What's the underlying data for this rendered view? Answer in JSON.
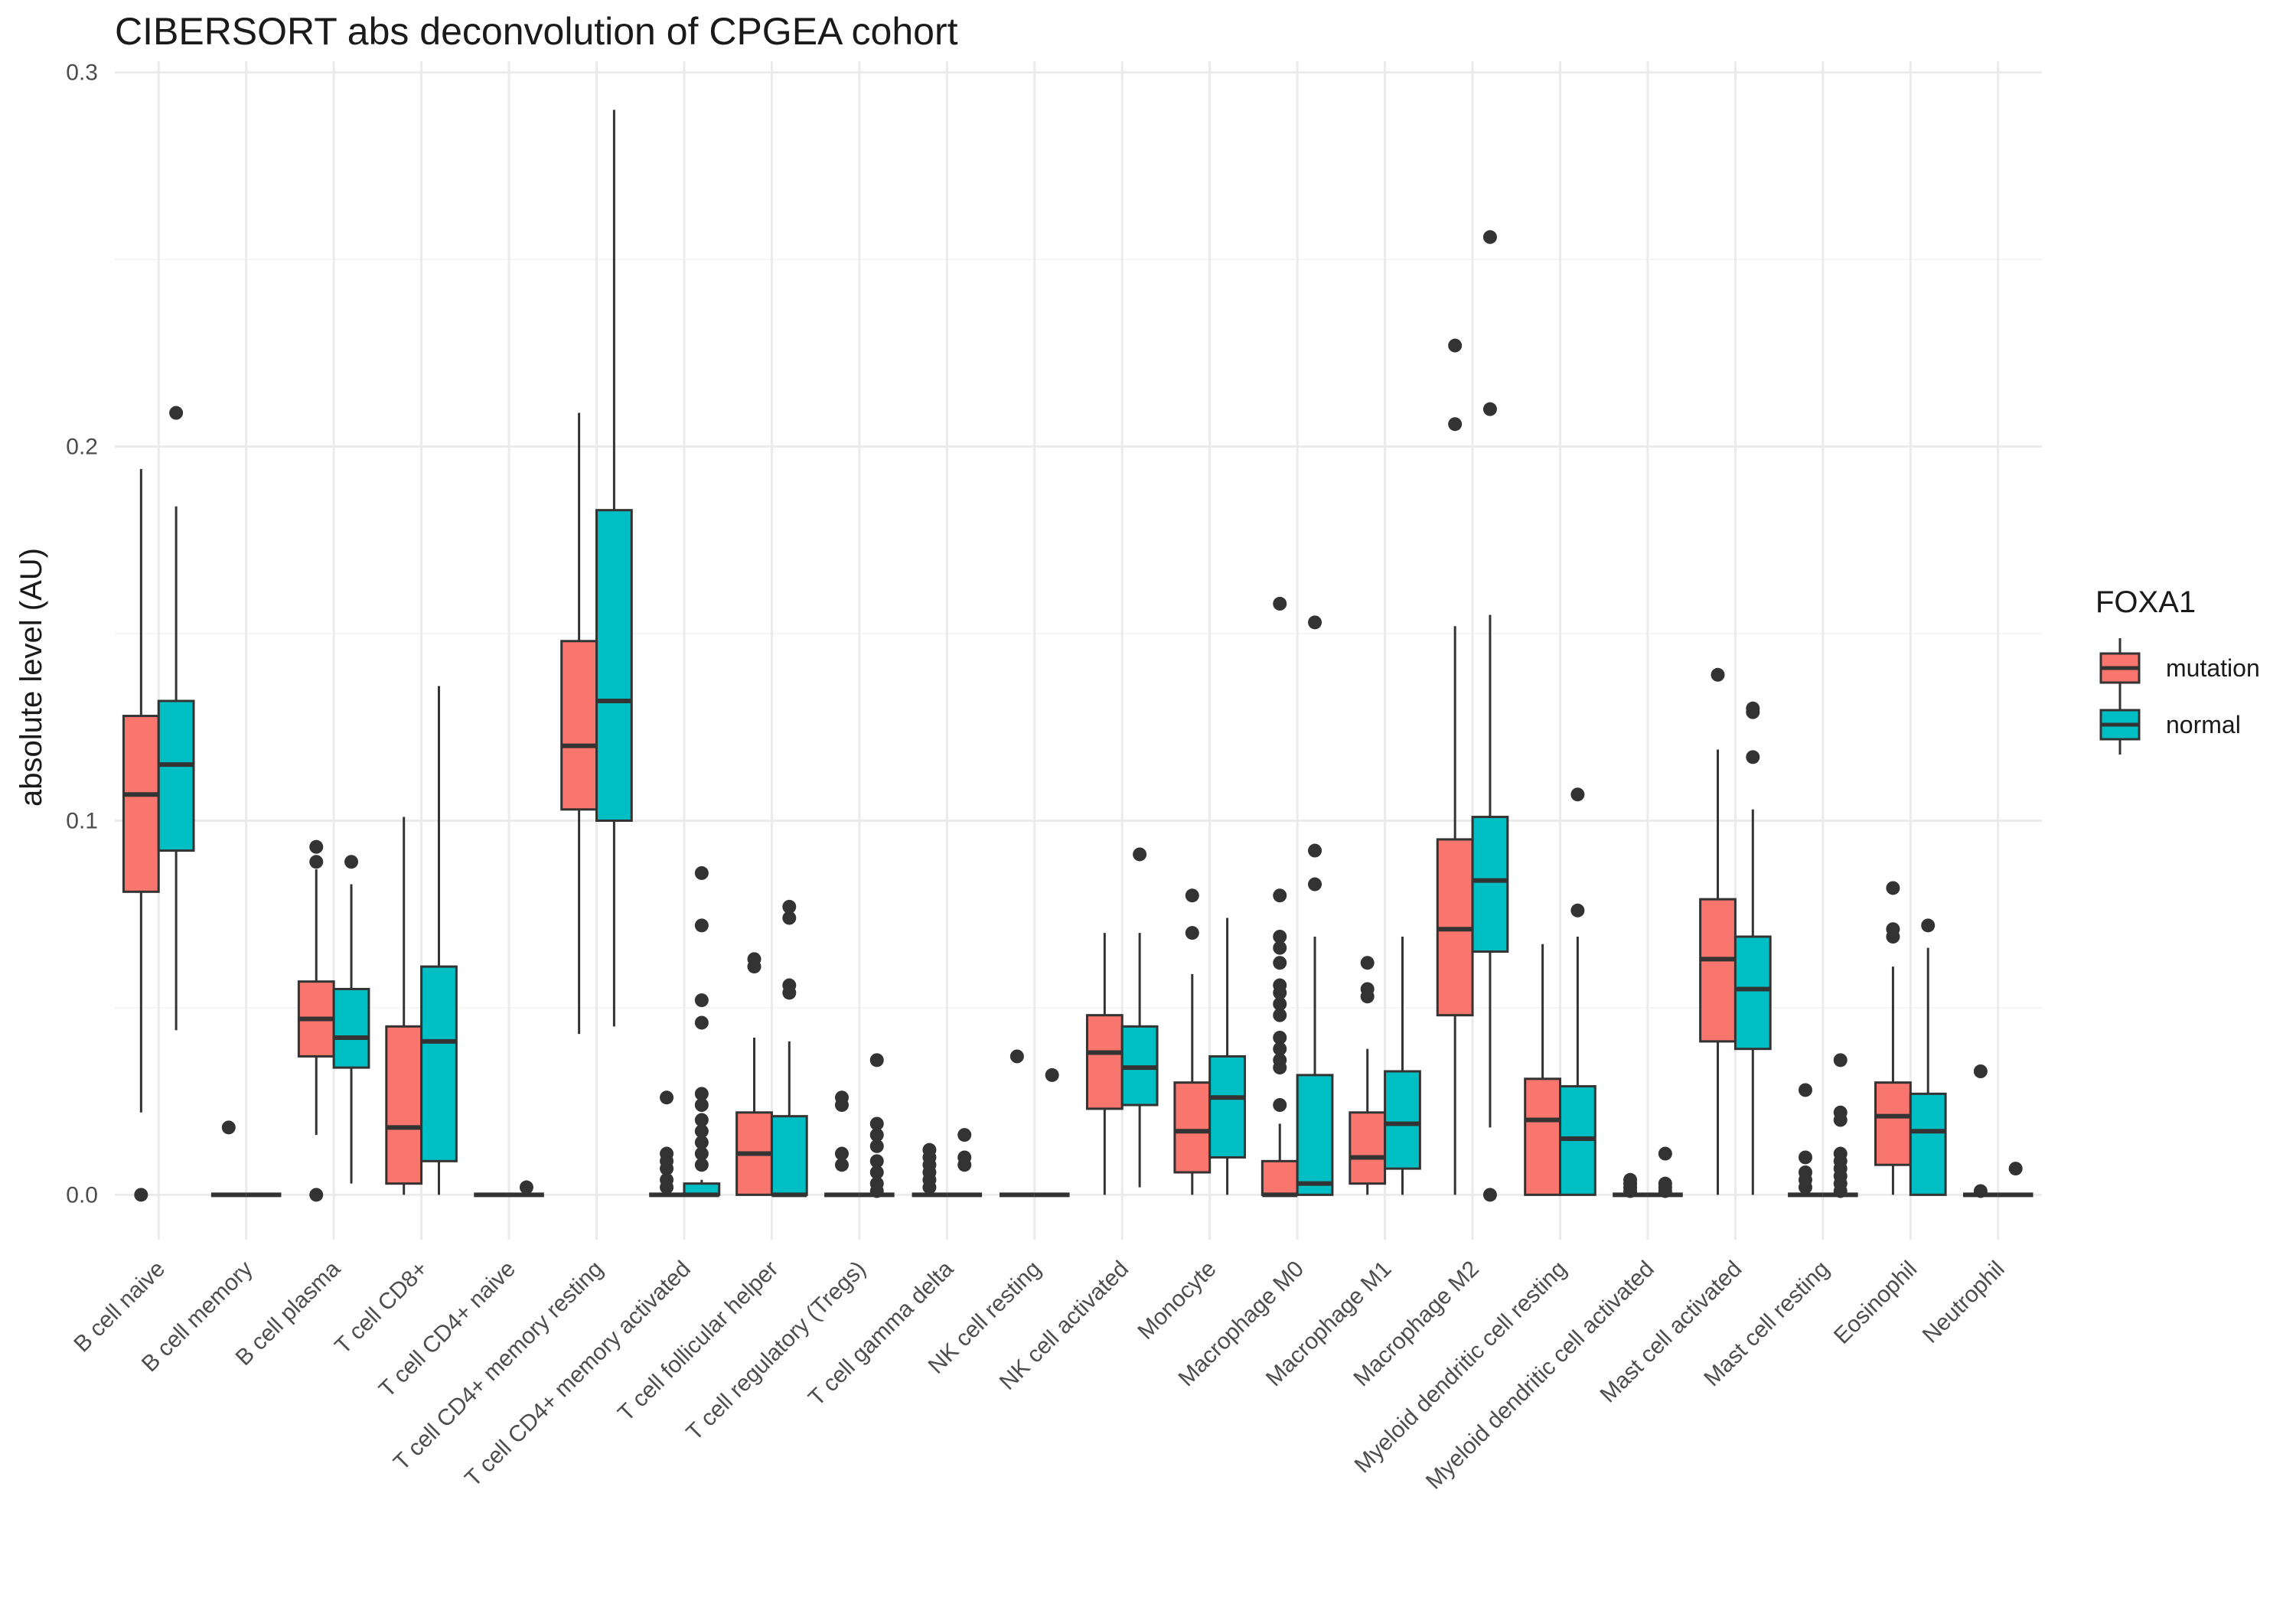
{
  "chart_data": {
    "type": "boxplot",
    "title": "CIBERSORT abs deconvolution of CPGEA cohort",
    "ylabel": "absolute level (AU)",
    "ylim": [
      -0.012,
      0.303
    ],
    "yticks": [
      0.0,
      0.1,
      0.2,
      0.3
    ],
    "ytick_labels": [
      "0.0",
      "0.1",
      "0.2",
      "0.3"
    ],
    "grid": true,
    "legend": {
      "title": "FOXA1",
      "position": "right",
      "entries": [
        {
          "name": "mutation",
          "color": "#F8766D"
        },
        {
          "name": "normal",
          "color": "#00BFC4"
        }
      ]
    },
    "categories": [
      "B cell naive",
      "B cell memory",
      "B cell plasma",
      "T cell CD8+",
      "T cell CD4+ naive",
      "T cell CD4+ memory resting",
      "T cell CD4+ memory activated",
      "T cell follicular helper",
      "T cell regulatory (Tregs)",
      "T cell gamma delta",
      "NK cell resting",
      "NK cell activated",
      "Monocyte",
      "Macrophage M0",
      "Macrophage M1",
      "Macrophage M2",
      "Myeloid dendritic cell resting",
      "Myeloid dendritic cell activated",
      "Mast cell activated",
      "Mast cell resting",
      "Eosinophil",
      "Neutrophil"
    ],
    "series": [
      {
        "name": "mutation",
        "color": "#F8766D",
        "boxes": [
          {
            "q1": 0.081,
            "median": 0.107,
            "q3": 0.128,
            "lower": 0.022,
            "upper": 0.194,
            "outliers": [
              0.0
            ]
          },
          {
            "q1": 0.0,
            "median": 0.0,
            "q3": 0.0,
            "lower": 0.0,
            "upper": 0.0,
            "outliers": [
              0.018
            ]
          },
          {
            "q1": 0.037,
            "median": 0.047,
            "q3": 0.057,
            "lower": 0.016,
            "upper": 0.087,
            "outliers": [
              0.0,
              0.089,
              0.093
            ]
          },
          {
            "q1": 0.003,
            "median": 0.018,
            "q3": 0.045,
            "lower": 0.0,
            "upper": 0.101,
            "outliers": []
          },
          {
            "q1": 0.0,
            "median": 0.0,
            "q3": 0.0,
            "lower": 0.0,
            "upper": 0.0,
            "outliers": []
          },
          {
            "q1": 0.103,
            "median": 0.12,
            "q3": 0.148,
            "lower": 0.043,
            "upper": 0.209,
            "outliers": []
          },
          {
            "q1": 0.0,
            "median": 0.0,
            "q3": 0.0,
            "lower": 0.0,
            "upper": 0.0,
            "outliers": [
              0.002,
              0.004,
              0.007,
              0.009,
              0.011,
              0.026
            ]
          },
          {
            "q1": 0.0,
            "median": 0.011,
            "q3": 0.022,
            "lower": 0.0,
            "upper": 0.042,
            "outliers": [
              0.061,
              0.063
            ]
          },
          {
            "q1": 0.0,
            "median": 0.0,
            "q3": 0.0,
            "lower": 0.0,
            "upper": 0.0,
            "outliers": [
              0.008,
              0.011,
              0.024,
              0.026
            ]
          },
          {
            "q1": 0.0,
            "median": 0.0,
            "q3": 0.0,
            "lower": 0.0,
            "upper": 0.0,
            "outliers": [
              0.002,
              0.004,
              0.006,
              0.008,
              0.01,
              0.012
            ]
          },
          {
            "q1": 0.0,
            "median": 0.0,
            "q3": 0.0,
            "lower": 0.0,
            "upper": 0.0,
            "outliers": [
              0.037
            ]
          },
          {
            "q1": 0.023,
            "median": 0.038,
            "q3": 0.048,
            "lower": 0.0,
            "upper": 0.07,
            "outliers": []
          },
          {
            "q1": 0.006,
            "median": 0.017,
            "q3": 0.03,
            "lower": 0.0,
            "upper": 0.059,
            "outliers": [
              0.07,
              0.08
            ]
          },
          {
            "q1": 0.0,
            "median": 0.0,
            "q3": 0.009,
            "lower": 0.0,
            "upper": 0.019,
            "outliers": [
              0.024,
              0.034,
              0.036,
              0.039,
              0.042,
              0.048,
              0.051,
              0.054,
              0.056,
              0.062,
              0.066,
              0.069,
              0.08,
              0.158
            ]
          },
          {
            "q1": 0.003,
            "median": 0.01,
            "q3": 0.022,
            "lower": 0.0,
            "upper": 0.039,
            "outliers": [
              0.053,
              0.055,
              0.062
            ]
          },
          {
            "q1": 0.048,
            "median": 0.071,
            "q3": 0.095,
            "lower": 0.0,
            "upper": 0.152,
            "outliers": [
              0.206,
              0.227
            ]
          },
          {
            "q1": 0.0,
            "median": 0.02,
            "q3": 0.031,
            "lower": 0.0,
            "upper": 0.067,
            "outliers": []
          },
          {
            "q1": 0.0,
            "median": 0.0,
            "q3": 0.0,
            "lower": 0.0,
            "upper": 0.0,
            "outliers": [
              0.001,
              0.002,
              0.003,
              0.004
            ]
          },
          {
            "q1": 0.041,
            "median": 0.063,
            "q3": 0.079,
            "lower": 0.0,
            "upper": 0.119,
            "outliers": [
              0.139
            ]
          },
          {
            "q1": 0.0,
            "median": 0.0,
            "q3": 0.0,
            "lower": 0.0,
            "upper": 0.0,
            "outliers": [
              0.002,
              0.004,
              0.006,
              0.01,
              0.028
            ]
          },
          {
            "q1": 0.008,
            "median": 0.021,
            "q3": 0.03,
            "lower": 0.0,
            "upper": 0.061,
            "outliers": [
              0.069,
              0.071,
              0.082
            ]
          },
          {
            "q1": 0.0,
            "median": 0.0,
            "q3": 0.0,
            "lower": 0.0,
            "upper": 0.0,
            "outliers": [
              0.001,
              0.033
            ]
          }
        ]
      },
      {
        "name": "normal",
        "color": "#00BFC4",
        "boxes": [
          {
            "q1": 0.092,
            "median": 0.115,
            "q3": 0.132,
            "lower": 0.044,
            "upper": 0.184,
            "outliers": [
              0.209
            ]
          },
          {
            "q1": 0.0,
            "median": 0.0,
            "q3": 0.0,
            "lower": 0.0,
            "upper": 0.0,
            "outliers": []
          },
          {
            "q1": 0.034,
            "median": 0.042,
            "q3": 0.055,
            "lower": 0.003,
            "upper": 0.083,
            "outliers": [
              0.089
            ]
          },
          {
            "q1": 0.009,
            "median": 0.041,
            "q3": 0.061,
            "lower": 0.0,
            "upper": 0.136,
            "outliers": []
          },
          {
            "q1": 0.0,
            "median": 0.0,
            "q3": 0.0,
            "lower": 0.0,
            "upper": 0.0,
            "outliers": [
              0.002
            ]
          },
          {
            "q1": 0.1,
            "median": 0.132,
            "q3": 0.183,
            "lower": 0.045,
            "upper": 0.29,
            "outliers": []
          },
          {
            "q1": 0.0,
            "median": 0.0,
            "q3": 0.003,
            "lower": 0.0,
            "upper": 0.004,
            "outliers": [
              0.008,
              0.011,
              0.014,
              0.017,
              0.02,
              0.024,
              0.027,
              0.046,
              0.052,
              0.072,
              0.086
            ]
          },
          {
            "q1": 0.0,
            "median": 0.0,
            "q3": 0.021,
            "lower": 0.0,
            "upper": 0.041,
            "outliers": [
              0.054,
              0.056,
              0.074,
              0.077
            ]
          },
          {
            "q1": 0.0,
            "median": 0.0,
            "q3": 0.0,
            "lower": 0.0,
            "upper": 0.0,
            "outliers": [
              0.001,
              0.003,
              0.006,
              0.009,
              0.013,
              0.016,
              0.019,
              0.036
            ]
          },
          {
            "q1": 0.0,
            "median": 0.0,
            "q3": 0.0,
            "lower": 0.0,
            "upper": 0.0,
            "outliers": [
              0.008,
              0.01,
              0.016
            ]
          },
          {
            "q1": 0.0,
            "median": 0.0,
            "q3": 0.0,
            "lower": 0.0,
            "upper": 0.0,
            "outliers": [
              0.032
            ]
          },
          {
            "q1": 0.024,
            "median": 0.034,
            "q3": 0.045,
            "lower": 0.002,
            "upper": 0.07,
            "outliers": [
              0.091
            ]
          },
          {
            "q1": 0.01,
            "median": 0.026,
            "q3": 0.037,
            "lower": 0.0,
            "upper": 0.074,
            "outliers": []
          },
          {
            "q1": 0.0,
            "median": 0.003,
            "q3": 0.032,
            "lower": 0.0,
            "upper": 0.069,
            "outliers": [
              0.083,
              0.092,
              0.153
            ]
          },
          {
            "q1": 0.007,
            "median": 0.019,
            "q3": 0.033,
            "lower": 0.0,
            "upper": 0.069,
            "outliers": []
          },
          {
            "q1": 0.065,
            "median": 0.084,
            "q3": 0.101,
            "lower": 0.018,
            "upper": 0.155,
            "outliers": [
              0.0,
              0.21,
              0.256
            ]
          },
          {
            "q1": 0.0,
            "median": 0.015,
            "q3": 0.029,
            "lower": 0.0,
            "upper": 0.069,
            "outliers": [
              0.076,
              0.107
            ]
          },
          {
            "q1": 0.0,
            "median": 0.0,
            "q3": 0.0,
            "lower": 0.0,
            "upper": 0.0,
            "outliers": [
              0.001,
              0.002,
              0.003,
              0.011
            ]
          },
          {
            "q1": 0.039,
            "median": 0.055,
            "q3": 0.069,
            "lower": 0.0,
            "upper": 0.103,
            "outliers": [
              0.117,
              0.129,
              0.13
            ]
          },
          {
            "q1": 0.0,
            "median": 0.0,
            "q3": 0.0,
            "lower": 0.0,
            "upper": 0.0,
            "outliers": [
              0.001,
              0.003,
              0.005,
              0.007,
              0.009,
              0.011,
              0.02,
              0.022,
              0.036
            ]
          },
          {
            "q1": 0.0,
            "median": 0.017,
            "q3": 0.027,
            "lower": 0.0,
            "upper": 0.066,
            "outliers": [
              0.072
            ]
          },
          {
            "q1": 0.0,
            "median": 0.0,
            "q3": 0.0,
            "lower": 0.0,
            "upper": 0.0,
            "outliers": [
              0.007
            ]
          }
        ]
      }
    ]
  }
}
